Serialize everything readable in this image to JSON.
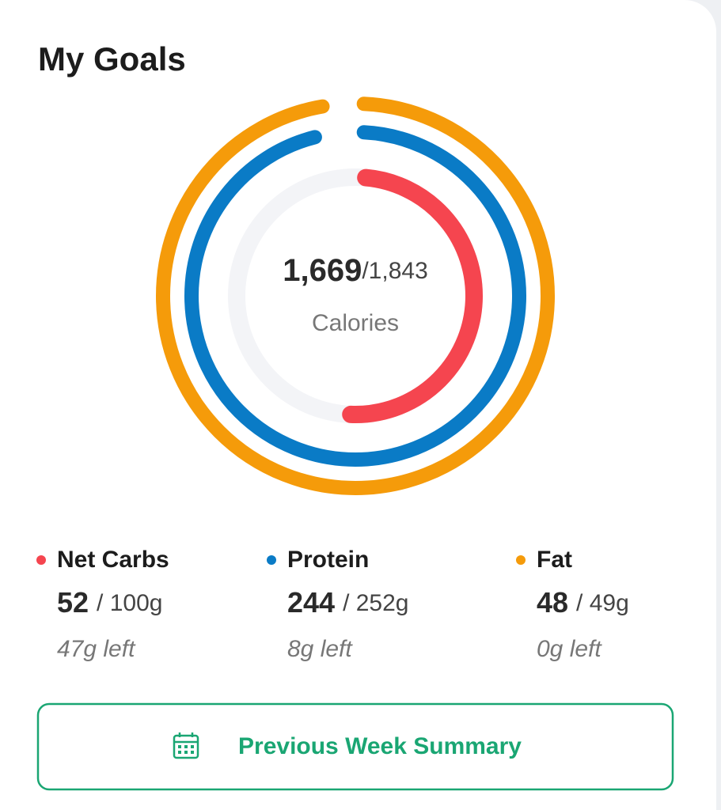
{
  "header": {
    "title": "My Goals"
  },
  "calories": {
    "consumed": {
      "value": 1669,
      "label": "1,669"
    },
    "goal": {
      "value": 1843,
      "label": "/1,843"
    },
    "label": "Calories"
  },
  "macros": [
    {
      "name": "Net Carbs",
      "color": "#f5454f",
      "value": 52,
      "goal": {
        "value": 100,
        "label": "/ 100g"
      },
      "left": "47g left"
    },
    {
      "name": "Protein",
      "color": "#0a7bc6",
      "value": 244,
      "goal": {
        "value": 252,
        "label": "/ 252g"
      },
      "left": "8g left"
    },
    {
      "name": "Fat",
      "color": "#f59b0a",
      "value": 48,
      "goal": {
        "value": 49,
        "label": "/ 49g"
      },
      "left": "0g left"
    }
  ],
  "button": {
    "label": "Previous Week Summary"
  }
}
